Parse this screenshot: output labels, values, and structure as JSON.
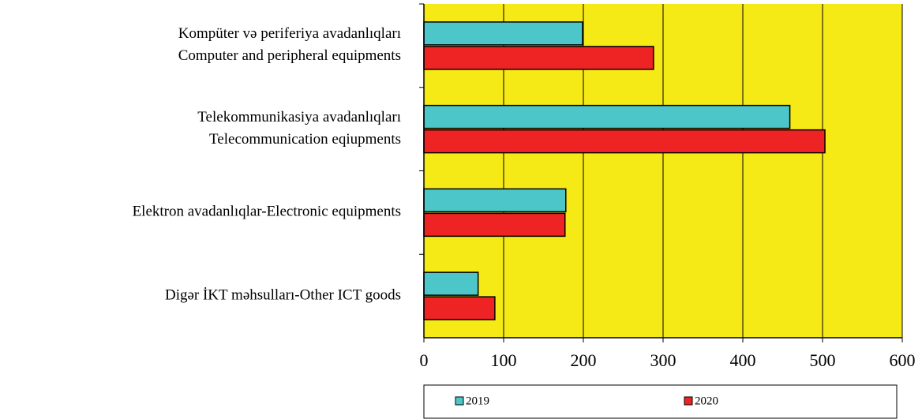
{
  "chart_data": {
    "type": "bar",
    "orientation": "horizontal",
    "categories": [
      [
        "Kompüter və periferiya avadanlıqları",
        "Computer and peripheral equipments"
      ],
      [
        "Telekommunikasiya avadanlıqları",
        "Telecommunication eqiupments"
      ],
      [
        "Elektron avadanlıqlar-Electronic equipments"
      ],
      [
        "Digər İKT məhsulları-Other ICT goods"
      ]
    ],
    "series": [
      {
        "name": "2019",
        "color": "#4cc6c8",
        "values": [
          199,
          459,
          178,
          68
        ]
      },
      {
        "name": "2020",
        "color": "#ee2424",
        "values": [
          288,
          503,
          177,
          89
        ]
      }
    ],
    "xlim": [
      0,
      600
    ],
    "xticks": [
      0,
      100,
      200,
      300,
      400,
      500,
      600
    ],
    "grid": true,
    "background": "#f5e916",
    "legend": "bottom"
  }
}
